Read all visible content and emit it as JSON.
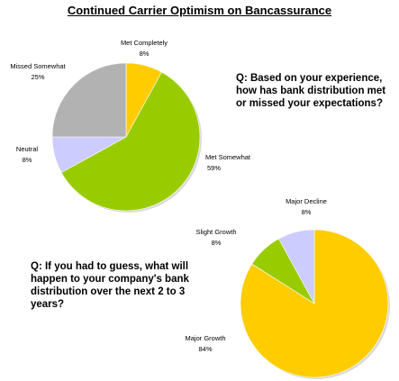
{
  "title": "Continued Carrier Optimism on Bancassurance",
  "questions": {
    "q1": "Q: Based on your experience, how has bank distribution met or missed your expectations?",
    "q2": "Q: If you had to guess, what will happen to your company's bank distribution over the next 2 to 3 years?"
  },
  "chart_data": [
    {
      "type": "pie",
      "categories": [
        "Met Completely",
        "Met Somewhat",
        "Neutral",
        "Missed Somewhat"
      ],
      "values": [
        8,
        59,
        8,
        25
      ],
      "value_labels": [
        "8%",
        "59%",
        "8%",
        "25%"
      ],
      "colors": [
        "#ffcc00",
        "#99cc00",
        "#ccccff",
        "#b2b2b2"
      ]
    },
    {
      "type": "pie",
      "categories": [
        "Major Growth",
        "Slight Growth",
        "Major Decline"
      ],
      "values": [
        84,
        8,
        8
      ],
      "value_labels": [
        "84%",
        "8%",
        "8%"
      ],
      "colors": [
        "#ffcc00",
        "#99cc00",
        "#ccccff"
      ]
    }
  ]
}
